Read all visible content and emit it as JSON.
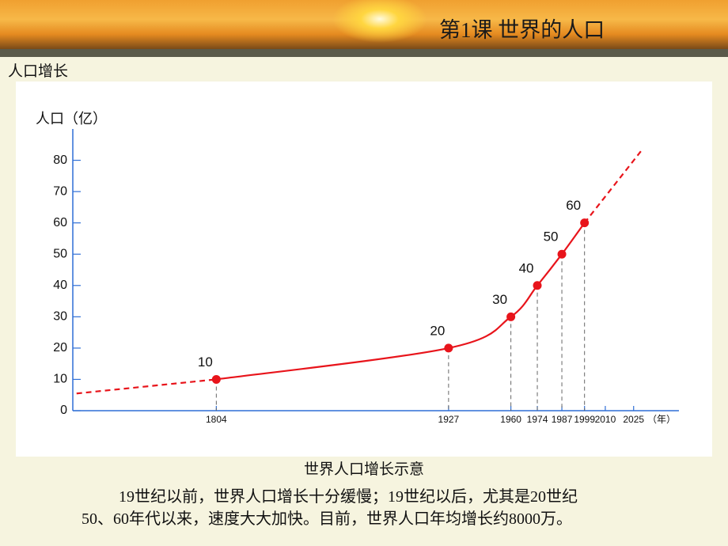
{
  "header": {
    "title": "第1课 世界的人口"
  },
  "section": "人口增长",
  "chart_data": {
    "type": "line",
    "y_label": "人口（亿）",
    "x_label": "（年）",
    "series": [
      {
        "color": "#e8141b",
        "x": [
          1804,
          1927,
          1960,
          1974,
          1987,
          1999
        ],
        "values": [
          10,
          20,
          30,
          40,
          50,
          60
        ],
        "markers": true,
        "data_labels": true
      },
      {
        "color": "#e8141b",
        "x": [
          1730,
          1804
        ],
        "values": [
          5.5,
          10
        ],
        "dashed": true
      },
      {
        "color": "#e8141b",
        "x": [
          1999,
          2029
        ],
        "values": [
          60,
          83
        ],
        "dashed": true
      }
    ],
    "xlim": [
      1728,
      2049
    ],
    "xticks": [
      1804,
      1927,
      1960,
      1974,
      1987,
      1999,
      2010,
      2025
    ],
    "ylim": [
      0,
      90
    ],
    "yticks": [
      0,
      10,
      20,
      30,
      40,
      50,
      60,
      70,
      80
    ]
  },
  "caption": "世界人口增长示意",
  "text_lines": [
    "19世纪以前，世界人口增长十分缓慢；19世纪以后，尤其是20世纪",
    "50、60年代以来，速度大大加快。目前，世界人口年均增长约8000万。"
  ]
}
